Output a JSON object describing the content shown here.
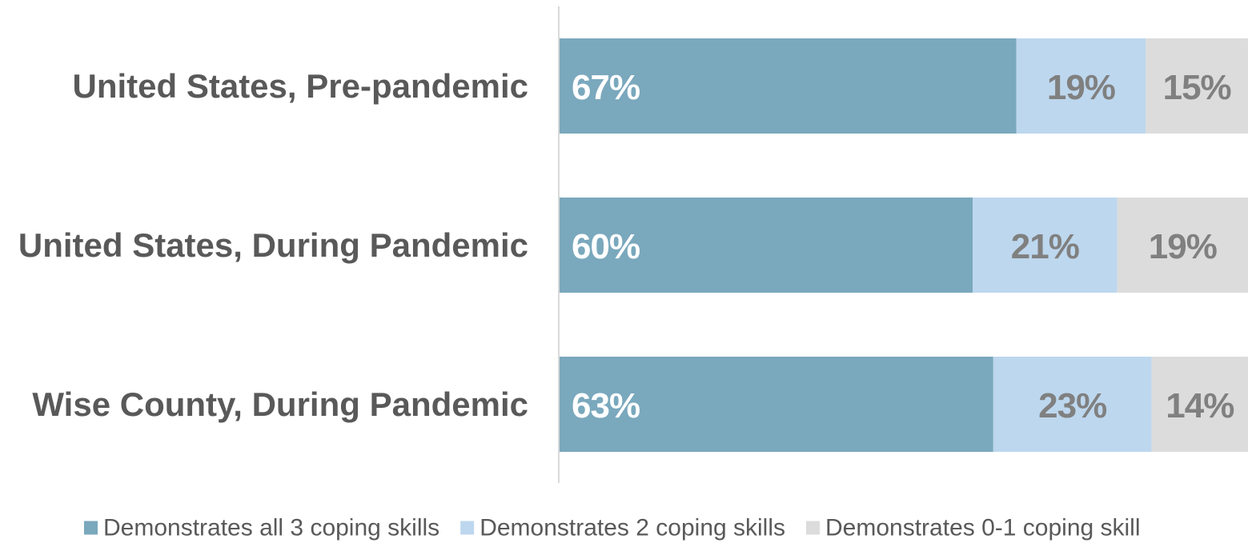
{
  "chart_data": {
    "type": "bar",
    "orientation": "horizontal",
    "stacked": true,
    "percent_stacked": true,
    "title": "",
    "xlabel": "",
    "ylabel": "",
    "xlim": [
      0,
      100
    ],
    "grid": false,
    "legend_position": "bottom",
    "categories": [
      "United States, Pre-pandemic",
      "United States, During Pandemic",
      "Wise County, During Pandemic"
    ],
    "series": [
      {
        "name": "Demonstrates all 3 coping skills",
        "values": [
          67,
          60,
          63
        ],
        "labels": [
          "67%",
          "60%",
          "63%"
        ],
        "color": "#7aa8bd",
        "label_color": "#ffffff"
      },
      {
        "name": "Demonstrates 2 coping skills",
        "values": [
          19,
          21,
          23
        ],
        "labels": [
          "19%",
          "21%",
          "23%"
        ],
        "color": "#bdd7ee",
        "label_color": "#808080"
      },
      {
        "name": "Demonstrates 0-1 coping skill",
        "values": [
          15,
          19,
          14
        ],
        "labels": [
          "15%",
          "19%",
          "14%"
        ],
        "color": "#dcdcdc",
        "label_color": "#808080"
      }
    ]
  }
}
